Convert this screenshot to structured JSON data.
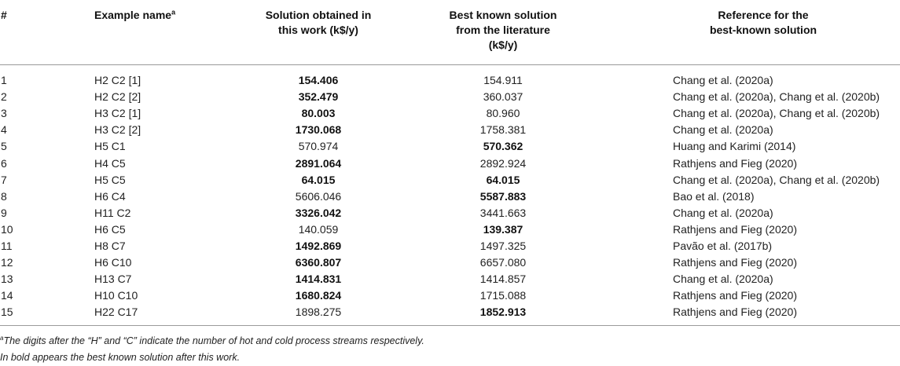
{
  "header": {
    "num": "#",
    "example_name": "Example name",
    "example_name_sup": "a",
    "solution_line1": "Solution obtained in",
    "solution_line2": "this work (k$/y)",
    "best_line1": "Best known solution",
    "best_line2": "from the literature",
    "best_line3": "(k$/y)",
    "ref_line1": "Reference for the",
    "ref_line2": "best-known solution"
  },
  "rows": [
    {
      "num": "1",
      "name": "H2 C2 [1]",
      "sol": "154.406",
      "sol_bold": true,
      "best": "154.911",
      "best_bold": false,
      "ref": "Chang et al. (2020a)"
    },
    {
      "num": "2",
      "name": "H2 C2 [2]",
      "sol": "352.479",
      "sol_bold": true,
      "best": "360.037",
      "best_bold": false,
      "ref": "Chang et al. (2020a), Chang et al. (2020b)"
    },
    {
      "num": "3",
      "name": "H3 C2 [1]",
      "sol": "80.003",
      "sol_bold": true,
      "best": "80.960",
      "best_bold": false,
      "ref": "Chang et al. (2020a), Chang et al. (2020b)"
    },
    {
      "num": "4",
      "name": "H3 C2 [2]",
      "sol": "1730.068",
      "sol_bold": true,
      "best": "1758.381",
      "best_bold": false,
      "ref": "Chang et al. (2020a)"
    },
    {
      "num": "5",
      "name": "H5 C1",
      "sol": "570.974",
      "sol_bold": false,
      "best": "570.362",
      "best_bold": true,
      "ref": "Huang and Karimi (2014)"
    },
    {
      "num": "6",
      "name": "H4 C5",
      "sol": "2891.064",
      "sol_bold": true,
      "best": "2892.924",
      "best_bold": false,
      "ref": "Rathjens and Fieg (2020)"
    },
    {
      "num": "7",
      "name": "H5 C5",
      "sol": "64.015",
      "sol_bold": true,
      "best": "64.015",
      "best_bold": true,
      "ref": "Chang et al. (2020a), Chang et al. (2020b)"
    },
    {
      "num": "8",
      "name": "H6 C4",
      "sol": "5606.046",
      "sol_bold": false,
      "best": "5587.883",
      "best_bold": true,
      "ref": "Bao et al. (2018)"
    },
    {
      "num": "9",
      "name": "H11 C2",
      "sol": "3326.042",
      "sol_bold": true,
      "best": "3441.663",
      "best_bold": false,
      "ref": "Chang et al. (2020a)"
    },
    {
      "num": "10",
      "name": "H6 C5",
      "sol": "140.059",
      "sol_bold": false,
      "best": "139.387",
      "best_bold": true,
      "ref": "Rathjens and Fieg (2020)"
    },
    {
      "num": "11",
      "name": "H8 C7",
      "sol": "1492.869",
      "sol_bold": true,
      "best": "1497.325",
      "best_bold": false,
      "ref": "Pavão et al. (2017b)"
    },
    {
      "num": "12",
      "name": "H6 C10",
      "sol": "6360.807",
      "sol_bold": true,
      "best": "6657.080",
      "best_bold": false,
      "ref": "Rathjens and Fieg (2020)"
    },
    {
      "num": "13",
      "name": "H13 C7",
      "sol": "1414.831",
      "sol_bold": true,
      "best": "1414.857",
      "best_bold": false,
      "ref": "Chang et al. (2020a)"
    },
    {
      "num": "14",
      "name": "H10 C10",
      "sol": "1680.824",
      "sol_bold": true,
      "best": "1715.088",
      "best_bold": false,
      "ref": "Rathjens and Fieg (2020)"
    },
    {
      "num": "15",
      "name": "H22 C17",
      "sol": "1898.275",
      "sol_bold": false,
      "best": "1852.913",
      "best_bold": true,
      "ref": "Rathjens and Fieg (2020)"
    }
  ],
  "footnotes": {
    "note_a_sup": "a",
    "note_a": "The digits after the “H” and “C” indicate the number of hot and cold process streams respectively.",
    "note_bold": "In bold appears the best known solution after this work."
  }
}
